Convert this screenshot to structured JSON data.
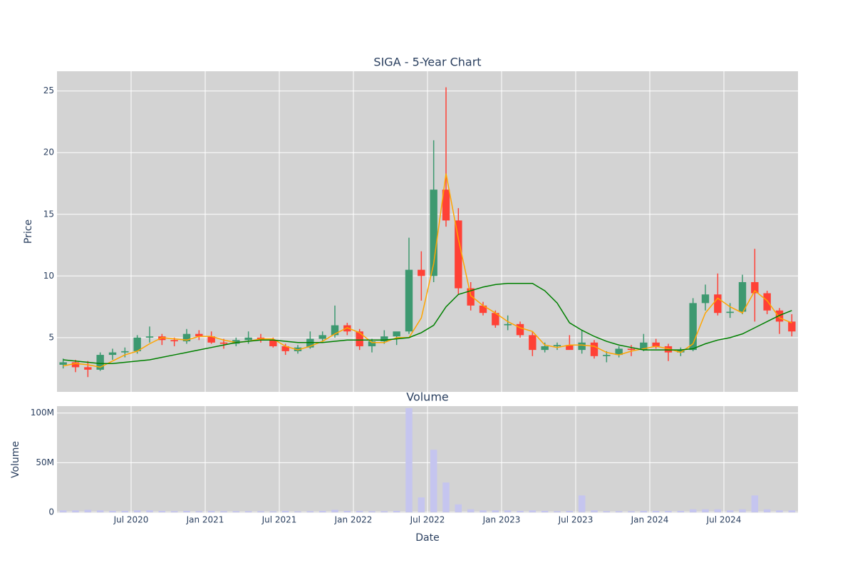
{
  "chart_data": [
    {
      "type": "candlestick",
      "title": "SIGA - 5-Year Chart",
      "ylabel": "Price",
      "x": [
        "2020-01",
        "2020-02",
        "2020-03",
        "2020-04",
        "2020-05",
        "2020-06",
        "2020-07",
        "2020-08",
        "2020-09",
        "2020-10",
        "2020-11",
        "2020-12",
        "2021-01",
        "2021-02",
        "2021-03",
        "2021-04",
        "2021-05",
        "2021-06",
        "2021-07",
        "2021-08",
        "2021-09",
        "2021-10",
        "2021-11",
        "2021-12",
        "2022-01",
        "2022-02",
        "2022-03",
        "2022-04",
        "2022-05",
        "2022-06",
        "2022-07",
        "2022-08",
        "2022-09",
        "2022-10",
        "2022-11",
        "2022-12",
        "2023-01",
        "2023-02",
        "2023-03",
        "2023-04",
        "2023-05",
        "2023-06",
        "2023-07",
        "2023-08",
        "2023-09",
        "2023-10",
        "2023-11",
        "2023-12",
        "2024-01",
        "2024-02",
        "2024-03",
        "2024-04",
        "2024-05",
        "2024-06",
        "2024-07",
        "2024-08",
        "2024-09",
        "2024-10",
        "2024-11",
        "2024-12"
      ],
      "open": [
        2.8,
        3.0,
        2.6,
        2.4,
        3.6,
        3.8,
        3.9,
        5.0,
        5.1,
        4.8,
        4.7,
        5.3,
        5.1,
        4.6,
        4.5,
        4.8,
        5.0,
        4.8,
        4.3,
        3.9,
        4.2,
        4.9,
        5.2,
        6.0,
        5.5,
        4.3,
        4.7,
        5.1,
        5.5,
        10.5,
        10.0,
        17.0,
        14.5,
        9.0,
        7.6,
        7.0,
        6.0,
        6.1,
        5.2,
        4.0,
        4.3,
        4.4,
        4.0,
        4.6,
        3.5,
        3.6,
        4.1,
        4.0,
        4.6,
        4.3,
        3.8,
        4.0,
        7.8,
        8.5,
        7.0,
        7.1,
        9.5,
        8.6,
        7.2,
        6.3
      ],
      "high": [
        3.3,
        3.2,
        3.1,
        3.8,
        4.1,
        4.2,
        5.2,
        5.9,
        5.3,
        5.0,
        5.7,
        5.6,
        5.5,
        4.9,
        5.0,
        5.5,
        5.3,
        5.0,
        4.5,
        4.4,
        5.5,
        5.5,
        7.6,
        6.2,
        5.7,
        4.9,
        5.6,
        5.4,
        13.1,
        12.0,
        21.0,
        25.3,
        15.5,
        9.5,
        7.9,
        7.2,
        6.8,
        6.3,
        5.5,
        4.6,
        4.6,
        5.2,
        5.6,
        4.8,
        3.9,
        4.3,
        4.4,
        5.3,
        4.9,
        4.5,
        4.2,
        8.2,
        9.3,
        10.2,
        7.8,
        10.1,
        12.2,
        8.8,
        7.4,
        6.9
      ],
      "low": [
        2.5,
        2.2,
        1.8,
        2.3,
        3.2,
        3.4,
        3.7,
        4.6,
        4.4,
        4.3,
        4.5,
        4.8,
        4.5,
        4.1,
        4.3,
        4.5,
        4.6,
        4.2,
        3.6,
        3.7,
        4.1,
        4.6,
        5.0,
        5.2,
        4.0,
        3.8,
        4.5,
        4.4,
        5.3,
        8.0,
        9.5,
        14.0,
        8.5,
        7.2,
        6.8,
        5.8,
        5.6,
        5.0,
        3.5,
        3.8,
        4.0,
        4.1,
        3.7,
        3.3,
        3.0,
        3.4,
        3.5,
        3.9,
        4.1,
        3.1,
        3.5,
        3.9,
        7.2,
        6.8,
        6.6,
        6.9,
        6.3,
        6.9,
        5.3,
        5.1
      ],
      "close": [
        3.0,
        2.6,
        2.4,
        3.6,
        3.8,
        3.9,
        5.0,
        5.1,
        4.8,
        4.7,
        5.3,
        5.1,
        4.6,
        4.5,
        4.8,
        5.0,
        4.8,
        4.3,
        3.9,
        4.2,
        4.9,
        5.2,
        6.0,
        5.5,
        4.3,
        4.7,
        5.1,
        5.5,
        10.5,
        10.0,
        17.0,
        14.5,
        9.0,
        7.6,
        7.0,
        6.0,
        6.1,
        5.2,
        4.0,
        4.3,
        4.4,
        4.0,
        4.6,
        3.5,
        3.6,
        4.1,
        4.0,
        4.6,
        4.3,
        3.8,
        4.0,
        7.8,
        8.5,
        7.0,
        7.1,
        9.5,
        8.6,
        7.2,
        6.3,
        5.5
      ],
      "increasing_color": "#3d9970",
      "decreasing_color": "#ff4136",
      "lines": [
        {
          "color": "orange",
          "values": [
            2.7,
            2.9,
            2.8,
            2.6,
            3.1,
            3.6,
            3.9,
            4.5,
            5.0,
            4.9,
            4.8,
            5.1,
            5.1,
            4.8,
            4.6,
            4.7,
            4.9,
            4.9,
            4.3,
            4.0,
            4.3,
            4.7,
            5.3,
            5.8,
            5.4,
            4.6,
            4.6,
            5.0,
            5.0,
            6.6,
            11.0,
            18.3,
            13.0,
            8.4,
            7.6,
            7.0,
            6.3,
            5.8,
            5.5,
            4.4,
            4.2,
            4.4,
            4.4,
            4.3,
            3.8,
            3.6,
            3.9,
            4.1,
            4.3,
            4.1,
            3.8,
            4.5,
            7.0,
            8.2,
            7.5,
            7.0,
            8.8,
            8.0,
            6.6,
            6.2
          ]
        },
        {
          "color": "green",
          "values": [
            3.2,
            3.1,
            3.0,
            2.9,
            2.9,
            3.0,
            3.1,
            3.2,
            3.4,
            3.6,
            3.8,
            4.0,
            4.2,
            4.4,
            4.6,
            4.7,
            4.8,
            4.8,
            4.7,
            4.6,
            4.6,
            4.6,
            4.7,
            4.8,
            4.8,
            4.8,
            4.8,
            4.9,
            5.0,
            5.4,
            6.0,
            7.5,
            8.5,
            8.8,
            9.1,
            9.3,
            9.4,
            9.4,
            9.4,
            8.8,
            7.8,
            6.2,
            5.6,
            5.1,
            4.7,
            4.4,
            4.2,
            4.0,
            4.0,
            4.0,
            4.0,
            4.1,
            4.5,
            4.8,
            5.0,
            5.3,
            5.8,
            6.3,
            6.8,
            7.2
          ]
        }
      ],
      "xlim": [
        "2020-01",
        "2025-01"
      ],
      "ylim": [
        0.6,
        26.6
      ],
      "yticks": [
        5,
        10,
        15,
        20,
        25
      ],
      "grid": true
    },
    {
      "type": "bar",
      "title": "Volume",
      "ylabel": "Volume",
      "xlabel": "Date",
      "x": [
        "2020-01",
        "2020-02",
        "2020-03",
        "2020-04",
        "2020-05",
        "2020-06",
        "2020-07",
        "2020-08",
        "2020-09",
        "2020-10",
        "2020-11",
        "2020-12",
        "2021-01",
        "2021-02",
        "2021-03",
        "2021-04",
        "2021-05",
        "2021-06",
        "2021-07",
        "2021-08",
        "2021-09",
        "2021-10",
        "2021-11",
        "2021-12",
        "2022-01",
        "2022-02",
        "2022-03",
        "2022-04",
        "2022-05",
        "2022-06",
        "2022-07",
        "2022-08",
        "2022-09",
        "2022-10",
        "2022-11",
        "2022-12",
        "2023-01",
        "2023-02",
        "2023-03",
        "2023-04",
        "2023-05",
        "2023-06",
        "2023-07",
        "2023-08",
        "2023-09",
        "2023-10",
        "2023-11",
        "2023-12",
        "2024-01",
        "2024-02",
        "2024-03",
        "2024-04",
        "2024-05",
        "2024-06",
        "2024-07",
        "2024-08",
        "2024-09",
        "2024-10",
        "2024-11",
        "2024-12"
      ],
      "values": [
        2000000,
        2000000,
        2500000,
        2000000,
        1500000,
        1500000,
        2000000,
        2000000,
        1500000,
        1200000,
        1500000,
        1200000,
        1500000,
        1200000,
        1200000,
        1200000,
        1200000,
        1000000,
        1500000,
        1000000,
        1200000,
        1500000,
        2500000,
        1500000,
        1500000,
        1200000,
        1200000,
        1500000,
        105000000,
        15000000,
        63000000,
        30000000,
        8000000,
        3000000,
        2000000,
        2000000,
        2000000,
        1500000,
        2000000,
        1500000,
        1200000,
        1500000,
        17000000,
        2000000,
        1200000,
        1200000,
        1200000,
        1500000,
        1500000,
        1500000,
        1500000,
        3000000,
        3000000,
        3000000,
        2000000,
        3000000,
        17000000,
        3000000,
        2000000,
        2000000
      ],
      "color": "#c5c5ef",
      "xlim": [
        "2020-01",
        "2025-01"
      ],
      "xticks": [
        {
          "value": "2020-07",
          "label": "Jul 2020"
        },
        {
          "value": "2021-01",
          "label": "Jan 2021"
        },
        {
          "value": "2021-07",
          "label": "Jul 2021"
        },
        {
          "value": "2022-01",
          "label": "Jan 2022"
        },
        {
          "value": "2022-07",
          "label": "Jul 2022"
        },
        {
          "value": "2023-01",
          "label": "Jan 2023"
        },
        {
          "value": "2023-07",
          "label": "Jul 2023"
        },
        {
          "value": "2024-01",
          "label": "Jan 2024"
        },
        {
          "value": "2024-07",
          "label": "Jul 2024"
        }
      ],
      "ylim": [
        -700000,
        107000000
      ],
      "yticks": [
        0,
        {
          "value": 50000000,
          "label": "50M"
        },
        {
          "value": 100000000,
          "label": "100M"
        }
      ],
      "grid": true
    }
  ]
}
